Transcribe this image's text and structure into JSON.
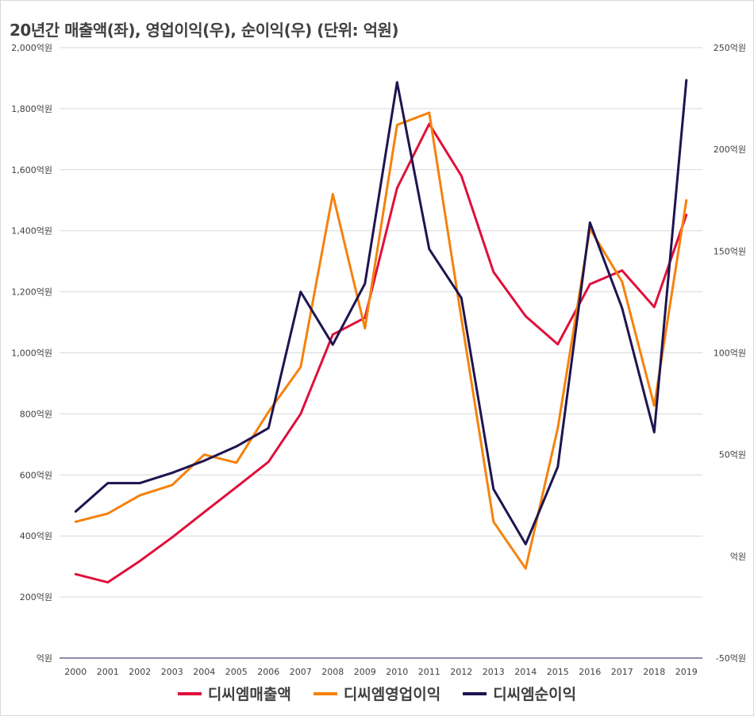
{
  "chart_data": {
    "type": "line",
    "title": "20년간 매출액(좌), 영업이익(우), 순이익(우) (단위: 억원)",
    "x": [
      "2000",
      "2001",
      "2002",
      "2003",
      "2004",
      "2005",
      "2006",
      "2007",
      "2008",
      "2009",
      "2010",
      "2011",
      "2012",
      "2013",
      "2014",
      "2015",
      "2016",
      "2017",
      "2018",
      "2019"
    ],
    "left_axis": {
      "ylim": [
        0,
        2000
      ],
      "ticks": [
        "억원",
        "200억원",
        "400억원",
        "600억원",
        "800억원",
        "1,000억원",
        "1,200억원",
        "1,400억원",
        "1,600억원",
        "1,800억원",
        "2,000억원"
      ]
    },
    "right_axis": {
      "ylim": [
        -50,
        250
      ],
      "ticks": [
        "-50억원",
        "억원",
        "50억원",
        "100억원",
        "150억원",
        "200억원",
        "250억원"
      ]
    },
    "grid": true,
    "legend_position": "bottom",
    "series": [
      {
        "name": "디씨엠매출액",
        "axis": "left",
        "color": "#e0103a",
        "values": [
          275,
          248,
          318,
          395,
          478,
          560,
          643,
          800,
          1060,
          1115,
          1540,
          1750,
          1580,
          1265,
          1120,
          1028,
          1225,
          1270,
          1150,
          1452
        ]
      },
      {
        "name": "디씨엠영업이익",
        "axis": "right",
        "color": "#f5820d",
        "values": [
          17,
          21,
          30,
          35,
          50,
          46,
          71,
          93,
          178,
          112,
          212,
          218,
          117,
          17,
          -6,
          63,
          161,
          135,
          74,
          175
        ]
      },
      {
        "name": "디씨엠순이익",
        "axis": "right",
        "color": "#1f1450",
        "values": [
          22,
          36,
          36,
          41,
          47,
          54,
          63,
          130,
          104,
          134,
          233,
          151,
          127,
          33,
          6,
          44,
          164,
          122,
          61,
          234
        ]
      }
    ]
  }
}
